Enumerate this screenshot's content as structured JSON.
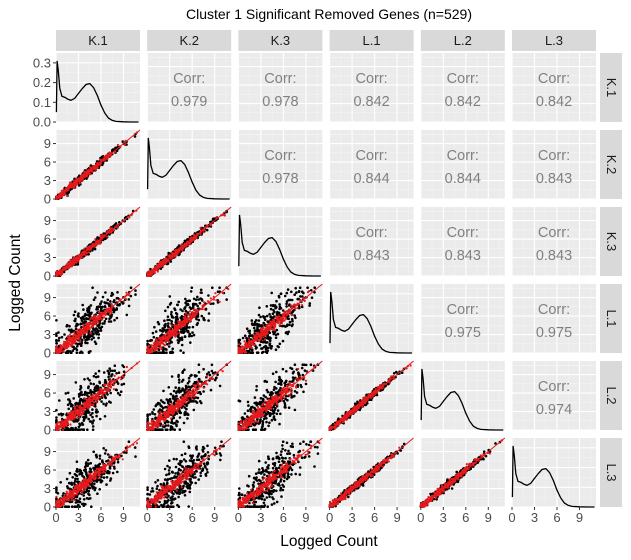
{
  "chart_data": {
    "type": "scatter",
    "title": "Cluster 1 Significant Removed Genes (n=529)",
    "xlabel": "Logged Count",
    "ylabel": "Logged Count",
    "samples": [
      "K.1",
      "K.2",
      "K.3",
      "L.1",
      "L.2",
      "L.3"
    ],
    "x_ticks": [
      "0",
      "3",
      "6",
      "9"
    ],
    "y_ticks_density": [
      "0.0",
      "0.1",
      "0.2",
      "0.3"
    ],
    "y_ticks_scatter": [
      "0",
      "3",
      "6",
      "9"
    ],
    "xlim": [
      0,
      11.2
    ],
    "ylim_scatter": [
      0,
      11.2
    ],
    "ylim_density": [
      0,
      0.35
    ],
    "corr_label": "Corr:",
    "correlations": [
      {
        "row": "K.1",
        "col": "K.2",
        "value": "0.979"
      },
      {
        "row": "K.1",
        "col": "K.3",
        "value": "0.978"
      },
      {
        "row": "K.1",
        "col": "L.1",
        "value": "0.842"
      },
      {
        "row": "K.1",
        "col": "L.2",
        "value": "0.842"
      },
      {
        "row": "K.1",
        "col": "L.3",
        "value": "0.842"
      },
      {
        "row": "K.2",
        "col": "K.3",
        "value": "0.978"
      },
      {
        "row": "K.2",
        "col": "L.1",
        "value": "0.844"
      },
      {
        "row": "K.2",
        "col": "L.2",
        "value": "0.844"
      },
      {
        "row": "K.2",
        "col": "L.3",
        "value": "0.843"
      },
      {
        "row": "K.3",
        "col": "L.1",
        "value": "0.843"
      },
      {
        "row": "K.3",
        "col": "L.2",
        "value": "0.843"
      },
      {
        "row": "K.3",
        "col": "L.3",
        "value": "0.843"
      },
      {
        "row": "L.1",
        "col": "L.2",
        "value": "0.975"
      },
      {
        "row": "L.1",
        "col": "L.3",
        "value": "0.975"
      },
      {
        "row": "L.2",
        "col": "L.3",
        "value": "0.974"
      }
    ],
    "density_shape": {
      "x": [
        0.05,
        0.15,
        0.3,
        0.5,
        0.8,
        1.2,
        1.6,
        2.0,
        2.5,
        3.0,
        3.5,
        4.0,
        4.5,
        5.0,
        5.5,
        6.0,
        6.5,
        7.0,
        7.5,
        8.0,
        9.0,
        10.0,
        11.0
      ],
      "y": [
        0.05,
        0.31,
        0.26,
        0.17,
        0.13,
        0.125,
        0.115,
        0.11,
        0.12,
        0.145,
        0.17,
        0.19,
        0.195,
        0.175,
        0.135,
        0.085,
        0.045,
        0.02,
        0.008,
        0.003,
        0.001,
        0.0,
        0.0
      ]
    },
    "scatter_highlight_color": "#e41a1c",
    "scatter_background_color": "#000000",
    "grid": true
  }
}
